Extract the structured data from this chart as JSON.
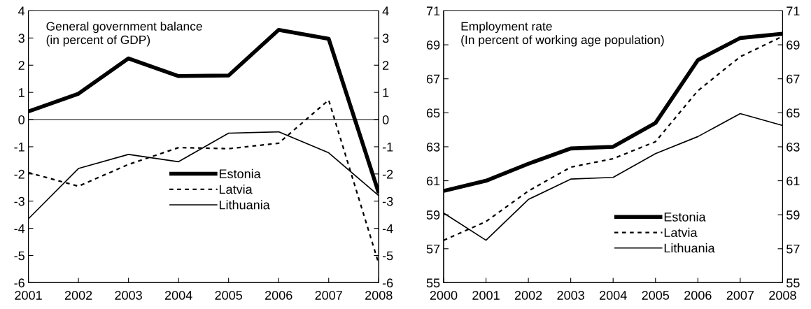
{
  "chart_data": [
    {
      "type": "line",
      "title": "General government balance\n(in percent of GDP)",
      "x": [
        2001,
        2002,
        2003,
        2004,
        2005,
        2006,
        2007,
        2008
      ],
      "series": [
        {
          "name": "Estonia",
          "color": "#000000",
          "line_style": "solid",
          "values": [
            0.3,
            0.95,
            2.25,
            1.6,
            1.62,
            3.3,
            2.97,
            -2.7
          ]
        },
        {
          "name": "Latvia",
          "color": "#000000",
          "line_style": "dotted",
          "values": [
            -1.95,
            -2.45,
            -1.65,
            -1.03,
            -1.07,
            -0.87,
            0.72,
            -5.3
          ]
        },
        {
          "name": "Lithuania",
          "color": "#000000",
          "line_style": "solid",
          "values": [
            -3.65,
            -1.8,
            -1.28,
            -1.55,
            -0.5,
            -0.45,
            -1.22,
            -2.8
          ]
        }
      ],
      "xlim": [
        2001,
        2008
      ],
      "xticks": [
        2001,
        2002,
        2003,
        2004,
        2005,
        2006,
        2007,
        2008
      ],
      "ylim": [
        -6,
        4
      ],
      "yticks": [
        -6,
        -5,
        -4,
        -3,
        -2,
        -1,
        0,
        1,
        2,
        3,
        4
      ],
      "y2lim": [
        -6,
        4
      ],
      "y2ticks": [
        -6,
        -5,
        -4,
        -3,
        -2,
        -1,
        0,
        1,
        2,
        3,
        4
      ],
      "ref_lines": [
        {
          "axis": "y",
          "value": 0,
          "color": "#000000"
        }
      ],
      "grid": false,
      "legend": "center",
      "marker": "none"
    },
    {
      "type": "line",
      "title": "Employment rate\n(In percent of working age population)",
      "x": [
        2000,
        2001,
        2002,
        2003,
        2004,
        2005,
        2006,
        2007,
        2008
      ],
      "series": [
        {
          "name": "Estonia",
          "color": "#000000",
          "line_style": "solid",
          "values": [
            60.4,
            61.0,
            62.0,
            62.9,
            63.0,
            64.4,
            68.1,
            69.4,
            69.65
          ]
        },
        {
          "name": "Latvia",
          "color": "#000000",
          "line_style": "dotted",
          "values": [
            57.5,
            58.6,
            60.4,
            61.8,
            62.3,
            63.3,
            66.3,
            68.3,
            69.5
          ]
        },
        {
          "name": "Lithuania",
          "color": "#000000",
          "line_style": "solid",
          "values": [
            59.1,
            57.5,
            59.9,
            61.1,
            61.2,
            62.6,
            63.6,
            64.95,
            64.25
          ]
        }
      ],
      "xlim": [
        2000,
        2008
      ],
      "xticks": [
        2000,
        2001,
        2002,
        2003,
        2004,
        2005,
        2006,
        2007,
        2008
      ],
      "ylim": [
        55,
        71
      ],
      "yticks": [
        55,
        57,
        59,
        61,
        63,
        65,
        67,
        69,
        71
      ],
      "y2lim": [
        55,
        71
      ],
      "y2ticks": [
        55,
        57,
        59,
        61,
        63,
        65,
        67,
        69,
        71
      ],
      "grid": false,
      "legend": "bottom right",
      "marker": "none"
    }
  ]
}
